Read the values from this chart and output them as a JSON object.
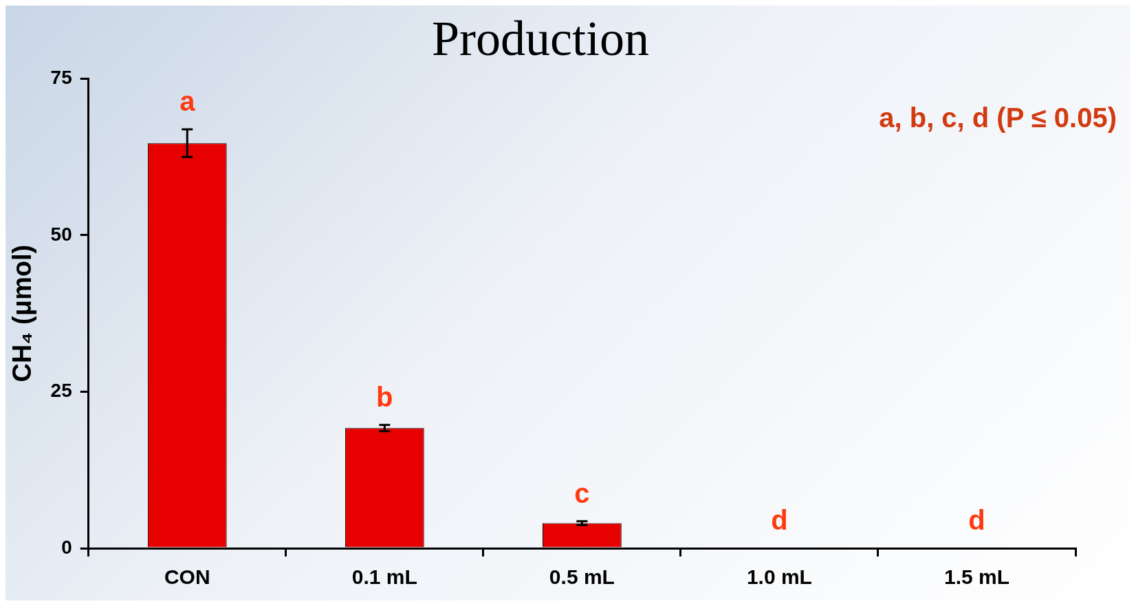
{
  "chart_data": {
    "type": "bar",
    "title": "Production",
    "ylabel": "CH₄ (μmol)",
    "categories": [
      "CON",
      "0.1 mL",
      "0.5 mL",
      "1.0 mL",
      "1.5 mL"
    ],
    "values": [
      64.7,
      19.2,
      4.0,
      0,
      0
    ],
    "errors": [
      2.2,
      0.5,
      0.3,
      null,
      null
    ],
    "color": "#e60000",
    "ylim": [
      0,
      75
    ],
    "yticks": [
      0,
      25,
      50,
      75
    ],
    "grid": false,
    "legend": false,
    "annotations": [
      "a",
      "b",
      "c",
      "d",
      "d",
      "a, b, c, d (P ≤ 0.05)"
    ]
  }
}
